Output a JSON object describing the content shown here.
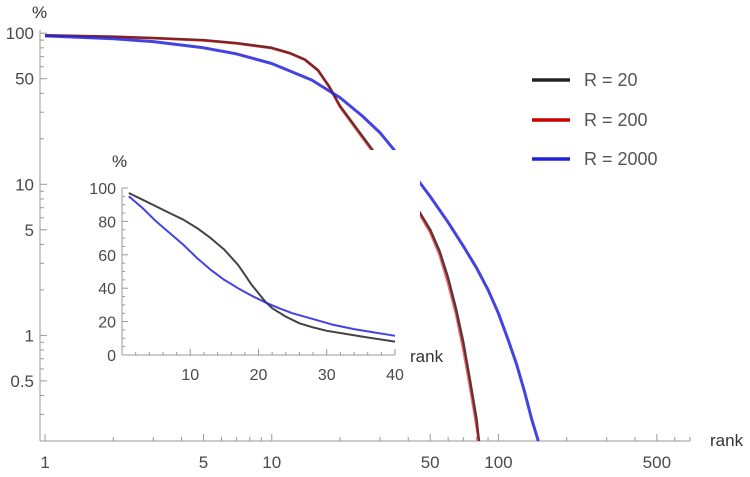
{
  "colors": {
    "R = 20": "#222222",
    "R = 200": "#cc0000",
    "R = 2000": "#2222dd"
  },
  "chart_data": [
    {
      "type": "line",
      "role": "main",
      "xlabel": "rank",
      "ylabel": "%",
      "xscale": "log",
      "yscale": "log",
      "xlim": [
        0.95,
        700
      ],
      "ylim": [
        0.2,
        105
      ],
      "xticks": [
        1,
        5,
        10,
        50,
        100,
        500
      ],
      "xtick_labels": [
        "1",
        "5",
        "10",
        "50",
        "100",
        "500"
      ],
      "yticks": [
        100,
        50,
        10,
        5,
        1,
        0.5
      ],
      "ytick_labels": [
        "100",
        "50",
        "10",
        "5",
        "1",
        "0.5"
      ],
      "legend": [
        "R = 20",
        "R = 200",
        "R = 2000"
      ],
      "legend_position": "right",
      "series": [
        {
          "name": "R = 20",
          "x": [
            1,
            2,
            3,
            5,
            7,
            10,
            12,
            14,
            16,
            18,
            20,
            25,
            30,
            35,
            40,
            45,
            50,
            55,
            60,
            65,
            70,
            75,
            80,
            82
          ],
          "y": [
            97,
            95,
            93,
            90,
            86,
            80,
            74,
            67,
            57,
            44,
            33,
            21,
            14.5,
            10.5,
            8,
            6.5,
            5,
            3.6,
            2.4,
            1.5,
            0.9,
            0.5,
            0.28,
            0.2
          ]
        },
        {
          "name": "R = 200",
          "x": [
            1,
            2,
            3,
            5,
            7,
            10,
            12,
            14,
            16,
            18,
            20,
            25,
            30,
            35,
            40,
            45,
            50,
            55,
            60,
            65,
            70,
            75,
            80,
            82
          ],
          "y": [
            96.5,
            94.5,
            92.5,
            89.5,
            85.5,
            79.5,
            73.5,
            66.5,
            56.5,
            43.5,
            32.5,
            20.5,
            14.2,
            10.2,
            7.8,
            6.3,
            4.8,
            3.4,
            2.2,
            1.38,
            0.8,
            0.45,
            0.25,
            0.2
          ]
        },
        {
          "name": "R = 2000",
          "x": [
            1,
            2,
            3,
            5,
            7,
            10,
            15,
            20,
            25,
            30,
            40,
            50,
            60,
            70,
            80,
            90,
            100,
            110,
            120,
            130,
            140,
            150
          ],
          "y": [
            96,
            92,
            88,
            80,
            73,
            63,
            49,
            37.5,
            28.5,
            22,
            13,
            8.3,
            5.6,
            3.9,
            2.8,
            2,
            1.4,
            0.95,
            0.65,
            0.43,
            0.28,
            0.2
          ]
        }
      ]
    },
    {
      "type": "line",
      "role": "inset",
      "xlabel": "rank",
      "ylabel": "%",
      "xlim": [
        0,
        40
      ],
      "ylim": [
        0,
        100
      ],
      "xticks": [
        10,
        20,
        30,
        40
      ],
      "yticks": [
        0,
        20,
        40,
        60,
        80,
        100
      ],
      "series": [
        {
          "name": "R = 20",
          "x": [
            1,
            3,
            5,
            7,
            9,
            11,
            13,
            15,
            17,
            18,
            19,
            20,
            21,
            22,
            24,
            26,
            28,
            30,
            33,
            36,
            40
          ],
          "y": [
            97,
            93,
            89,
            85,
            81,
            76,
            70,
            63,
            54,
            48,
            42,
            37,
            32,
            28,
            23,
            19,
            16.5,
            14.5,
            12.5,
            10.5,
            8
          ]
        },
        {
          "name": "R = 2000",
          "x": [
            1,
            3,
            5,
            7,
            9,
            11,
            13,
            15,
            17,
            19,
            21,
            23,
            25,
            28,
            31,
            34,
            37,
            40
          ],
          "y": [
            95,
            88,
            80,
            73,
            66,
            58,
            51,
            45,
            40,
            35.5,
            31.5,
            28,
            25,
            21.5,
            18,
            15.5,
            13.5,
            11.5
          ]
        }
      ]
    }
  ]
}
